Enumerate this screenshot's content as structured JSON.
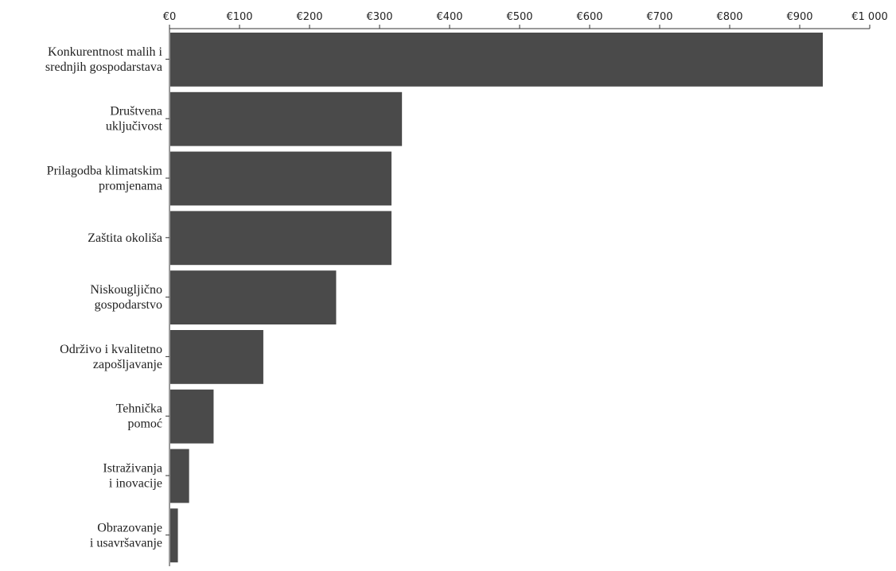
{
  "chart_data": {
    "type": "bar",
    "orientation": "horizontal",
    "title": "",
    "xlabel": "",
    "ylabel": "",
    "xlim": [
      0,
      1000
    ],
    "x_ticks": [
      {
        "value": 0,
        "label": "€0"
      },
      {
        "value": 100,
        "label": "€100"
      },
      {
        "value": 200,
        "label": "€200"
      },
      {
        "value": 300,
        "label": "€300"
      },
      {
        "value": 400,
        "label": "€400"
      },
      {
        "value": 500,
        "label": "€500"
      },
      {
        "value": 600,
        "label": "€600"
      },
      {
        "value": 700,
        "label": "€700"
      },
      {
        "value": 800,
        "label": "€800"
      },
      {
        "value": 900,
        "label": "€900"
      },
      {
        "value": 1000,
        "label": "€1 000"
      }
    ],
    "axis_position": "top",
    "grid": false,
    "bar_color": "#4a4a4a",
    "categories": [
      [
        "Konkurentnost malih i",
        "srednjih gospodarstava"
      ],
      [
        "Društvena",
        "uključivost"
      ],
      [
        "Prilagodba klimatskim",
        "promjenama"
      ],
      [
        "Zaštita okoliša"
      ],
      [
        "Niskougljično",
        "gospodarstvo"
      ],
      [
        "Održivo i kvalitetno",
        "zapošljavanje"
      ],
      [
        "Tehnička",
        "pomoć"
      ],
      [
        "Istraživanja",
        "i inovacije"
      ],
      [
        "Obrazovanje",
        "i usavršavanje"
      ]
    ],
    "values": [
      933,
      332,
      317,
      317,
      238,
      134,
      63,
      28,
      12
    ]
  }
}
